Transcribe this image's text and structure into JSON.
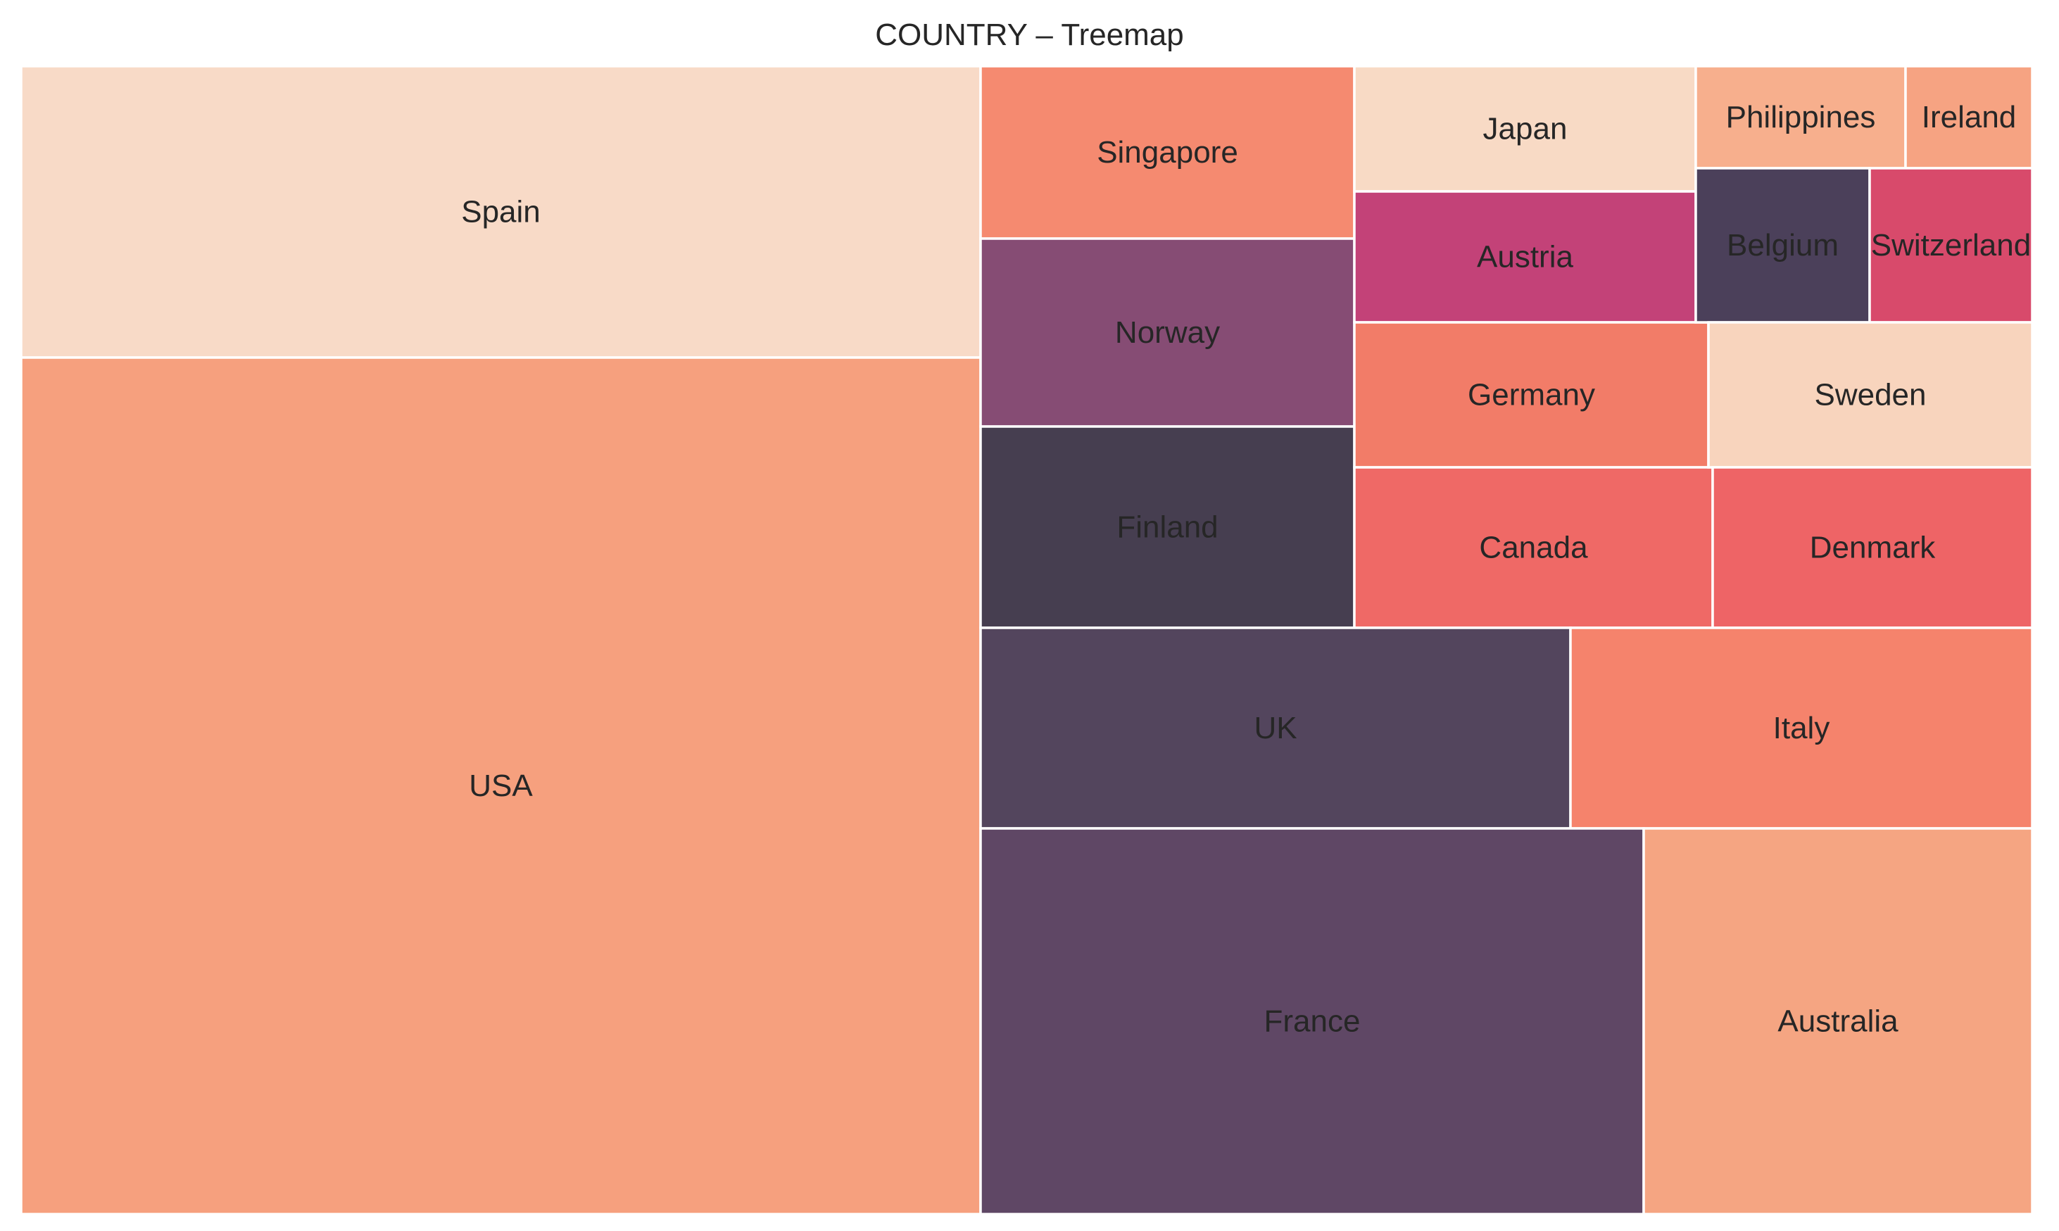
{
  "chart_data": {
    "type": "treemap",
    "title": "COUNTRY – Treemap",
    "color_scale": "seaborn-rocket",
    "items": [
      {
        "label": "USA",
        "value": 29.3,
        "color": "#f6a07e"
      },
      {
        "label": "Spain",
        "value": 9.9,
        "color": "#f8dac7"
      },
      {
        "label": "France",
        "value": 8.7,
        "color": "#5f4765"
      },
      {
        "label": "Australia",
        "value": 5.1,
        "color": "#f5a582"
      },
      {
        "label": "UK",
        "value": 4.1,
        "color": "#53455d"
      },
      {
        "label": "Italy",
        "value": 3.2,
        "color": "#f5836c"
      },
      {
        "label": "Singapore",
        "value": 2.2,
        "color": "#f58a70"
      },
      {
        "label": "Norway",
        "value": 2.4,
        "color": "#864c74"
      },
      {
        "label": "Finland",
        "value": 2.6,
        "color": "#463e50"
      },
      {
        "label": "Japan",
        "value": 1.5,
        "color": "#f8dac5"
      },
      {
        "label": "Austria",
        "value": 1.6,
        "color": "#c34278"
      },
      {
        "label": "Germany",
        "value": 1.7,
        "color": "#f27c68"
      },
      {
        "label": "Canada",
        "value": 1.9,
        "color": "#ef6966"
      },
      {
        "label": "Sweden",
        "value": 1.4,
        "color": "#f8d4bd"
      },
      {
        "label": "Denmark",
        "value": 1.7,
        "color": "#ee6466"
      },
      {
        "label": "Philippines",
        "value": 0.7,
        "color": "#f7af8d"
      },
      {
        "label": "Ireland",
        "value": 0.4,
        "color": "#f6a382"
      },
      {
        "label": "Belgium",
        "value": 0.7,
        "color": "#4b405a"
      },
      {
        "label": "Switzerland",
        "value": 0.6,
        "color": "#d84a6b"
      }
    ]
  }
}
